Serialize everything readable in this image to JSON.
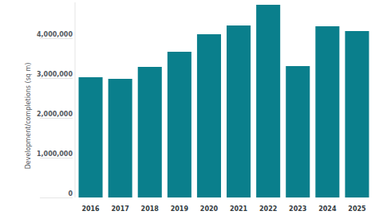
{
  "chart_data": {
    "type": "bar",
    "y_label": "Development/completions (sq m)",
    "categories": [
      "2016",
      "2017",
      "2018",
      "2019",
      "2020",
      "2021",
      "2022",
      "2023",
      "2024",
      "2025"
    ],
    "values": [
      3020000,
      2980000,
      3280000,
      3660000,
      4100000,
      4320000,
      4840000,
      3300000,
      4300000,
      4180000
    ],
    "color": "#0a7f8c",
    "ylim": [
      0,
      4900000
    ],
    "yticks": [
      0,
      {
        "value": 1000000,
        "label": "1,000,000"
      },
      {
        "value": 2000000,
        "label": "2,000,000"
      },
      {
        "value": 3000000,
        "label": "3,000,000"
      },
      {
        "value": 4000000,
        "label": "4,000,000"
      }
    ],
    "grid": false
  }
}
